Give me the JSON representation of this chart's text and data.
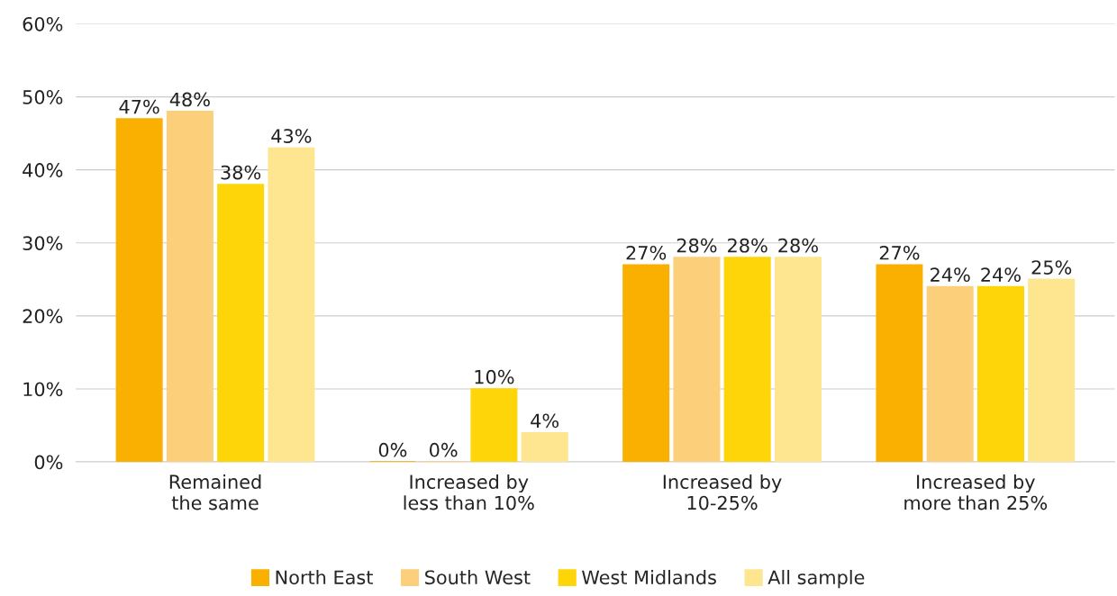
{
  "chart_data": {
    "type": "bar",
    "categories": [
      "Remained\nthe same",
      "Increased by\nless than 10%",
      "Increased by\n10-25%",
      "Increased by\nmore than 25%"
    ],
    "series": [
      {
        "name": "North East",
        "color": "#f9b000",
        "values": [
          47,
          0,
          27,
          27
        ],
        "value_labels": [
          "47%",
          "0%",
          "27%",
          "27%"
        ]
      },
      {
        "name": "South West",
        "color": "#fcd07a",
        "values": [
          48,
          0,
          28,
          24
        ],
        "value_labels": [
          "48%",
          "0%",
          "28%",
          "24%"
        ]
      },
      {
        "name": "West Midlands",
        "color": "#fdd508",
        "values": [
          38,
          10,
          28,
          24
        ],
        "value_labels": [
          "38%",
          "10%",
          "28%",
          "24%"
        ]
      },
      {
        "name": "All sample",
        "color": "#fde68f",
        "values": [
          43,
          4,
          28,
          25
        ],
        "value_labels": [
          "43%",
          "4%",
          "28%",
          "25%"
        ]
      }
    ],
    "ylim": [
      0,
      60
    ],
    "yticks": [
      {
        "value": 0,
        "label": "0%"
      },
      {
        "value": 10,
        "label": "10%"
      },
      {
        "value": 20,
        "label": "20%"
      },
      {
        "value": 30,
        "label": "30%"
      },
      {
        "value": 40,
        "label": "40%"
      },
      {
        "value": 50,
        "label": "50%"
      },
      {
        "value": 60,
        "label": "60%"
      }
    ],
    "grid": "y",
    "legend": "bottom"
  }
}
